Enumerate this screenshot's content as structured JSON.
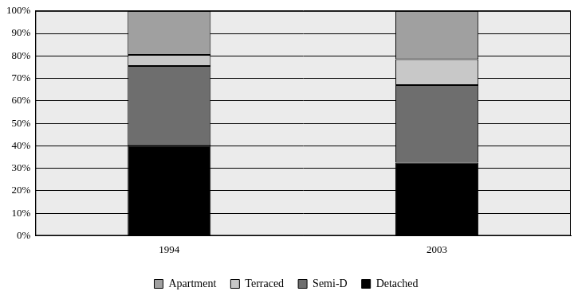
{
  "chart_data": {
    "type": "bar",
    "stacked": true,
    "categories": [
      "1994",
      "2003"
    ],
    "series": [
      {
        "name": "Detached",
        "color": "#000000",
        "values": [
          40,
          32.5
        ]
      },
      {
        "name": "Semi-D",
        "color": "#6e6e6e",
        "values": [
          35.5,
          34.5
        ]
      },
      {
        "name": "Terraced",
        "color": "#c8c8c8",
        "values": [
          5,
          11.5
        ]
      },
      {
        "name": "Apartment",
        "color": "#a0a0a0",
        "values": [
          19.5,
          21.5
        ]
      }
    ],
    "ylim": [
      0,
      100
    ],
    "yticks": [
      {
        "value": 0,
        "label": "0%"
      },
      {
        "value": 10,
        "label": "10%"
      },
      {
        "value": 20,
        "label": "20%"
      },
      {
        "value": 30,
        "label": "30%"
      },
      {
        "value": 40,
        "label": "40%"
      },
      {
        "value": 50,
        "label": "50%"
      },
      {
        "value": 60,
        "label": "60%"
      },
      {
        "value": 70,
        "label": "70%"
      },
      {
        "value": 80,
        "label": "80%"
      },
      {
        "value": 90,
        "label": "90%"
      },
      {
        "value": 100,
        "label": "100%"
      }
    ],
    "grid": true,
    "legend": "bottom"
  }
}
